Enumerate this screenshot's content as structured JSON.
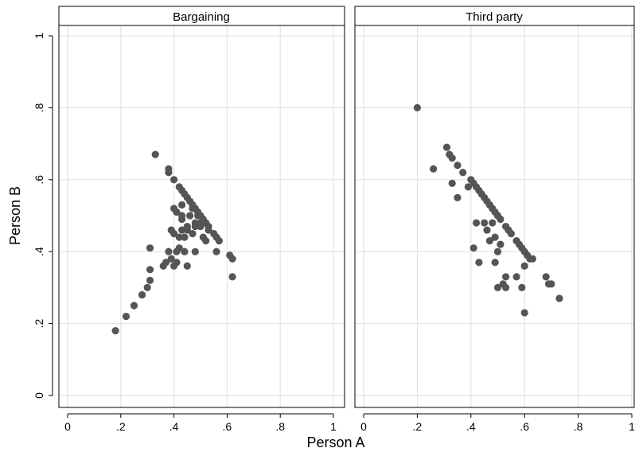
{
  "chart_data": {
    "type": "scatter",
    "xlabel": "Person A",
    "ylabel": "Person B",
    "xlim": [
      0,
      1
    ],
    "ylim": [
      0,
      1
    ],
    "x_ticks": [
      0,
      0.2,
      0.4,
      0.6,
      0.8,
      1
    ],
    "x_tick_labels": [
      "0",
      ".2",
      ".4",
      ".6",
      ".8",
      "1"
    ],
    "y_ticks": [
      0,
      0.2,
      0.4,
      0.6,
      0.8,
      1
    ],
    "y_tick_labels": [
      "0",
      ".2",
      ".4",
      ".6",
      ".8",
      "1"
    ],
    "grid": true,
    "marker_color": "#555555",
    "panels": [
      {
        "title": "Bargaining",
        "points": [
          [
            0.18,
            0.18
          ],
          [
            0.22,
            0.22
          ],
          [
            0.25,
            0.25
          ],
          [
            0.28,
            0.28
          ],
          [
            0.3,
            0.3
          ],
          [
            0.31,
            0.32
          ],
          [
            0.31,
            0.35
          ],
          [
            0.31,
            0.41
          ],
          [
            0.33,
            0.67
          ],
          [
            0.36,
            0.36
          ],
          [
            0.37,
            0.37
          ],
          [
            0.38,
            0.4
          ],
          [
            0.38,
            0.62
          ],
          [
            0.38,
            0.63
          ],
          [
            0.39,
            0.38
          ],
          [
            0.39,
            0.46
          ],
          [
            0.4,
            0.6
          ],
          [
            0.4,
            0.52
          ],
          [
            0.4,
            0.45
          ],
          [
            0.4,
            0.36
          ],
          [
            0.41,
            0.37
          ],
          [
            0.41,
            0.4
          ],
          [
            0.41,
            0.51
          ],
          [
            0.42,
            0.44
          ],
          [
            0.42,
            0.58
          ],
          [
            0.42,
            0.41
          ],
          [
            0.43,
            0.57
          ],
          [
            0.43,
            0.5
          ],
          [
            0.43,
            0.49
          ],
          [
            0.43,
            0.46
          ],
          [
            0.43,
            0.53
          ],
          [
            0.44,
            0.56
          ],
          [
            0.44,
            0.44
          ],
          [
            0.44,
            0.4
          ],
          [
            0.45,
            0.55
          ],
          [
            0.45,
            0.47
          ],
          [
            0.45,
            0.46
          ],
          [
            0.45,
            0.36
          ],
          [
            0.46,
            0.54
          ],
          [
            0.46,
            0.5
          ],
          [
            0.47,
            0.45
          ],
          [
            0.47,
            0.53
          ],
          [
            0.47,
            0.52
          ],
          [
            0.48,
            0.52
          ],
          [
            0.48,
            0.48
          ],
          [
            0.48,
            0.47
          ],
          [
            0.48,
            0.4
          ],
          [
            0.49,
            0.51
          ],
          [
            0.49,
            0.5
          ],
          [
            0.5,
            0.5
          ],
          [
            0.5,
            0.48
          ],
          [
            0.5,
            0.47
          ],
          [
            0.51,
            0.49
          ],
          [
            0.51,
            0.44
          ],
          [
            0.52,
            0.48
          ],
          [
            0.52,
            0.43
          ],
          [
            0.53,
            0.47
          ],
          [
            0.53,
            0.46
          ],
          [
            0.55,
            0.45
          ],
          [
            0.56,
            0.4
          ],
          [
            0.56,
            0.44
          ],
          [
            0.57,
            0.43
          ],
          [
            0.61,
            0.39
          ],
          [
            0.62,
            0.38
          ],
          [
            0.62,
            0.33
          ]
        ]
      },
      {
        "title": "Third party",
        "points": [
          [
            0.2,
            0.8
          ],
          [
            0.26,
            0.63
          ],
          [
            0.31,
            0.69
          ],
          [
            0.32,
            0.67
          ],
          [
            0.33,
            0.66
          ],
          [
            0.33,
            0.59
          ],
          [
            0.35,
            0.55
          ],
          [
            0.35,
            0.64
          ],
          [
            0.37,
            0.62
          ],
          [
            0.39,
            0.58
          ],
          [
            0.4,
            0.6
          ],
          [
            0.41,
            0.59
          ],
          [
            0.41,
            0.41
          ],
          [
            0.42,
            0.48
          ],
          [
            0.42,
            0.58
          ],
          [
            0.43,
            0.37
          ],
          [
            0.43,
            0.57
          ],
          [
            0.44,
            0.56
          ],
          [
            0.45,
            0.55
          ],
          [
            0.45,
            0.48
          ],
          [
            0.46,
            0.54
          ],
          [
            0.46,
            0.46
          ],
          [
            0.47,
            0.53
          ],
          [
            0.47,
            0.43
          ],
          [
            0.48,
            0.52
          ],
          [
            0.48,
            0.48
          ],
          [
            0.49,
            0.51
          ],
          [
            0.49,
            0.37
          ],
          [
            0.49,
            0.44
          ],
          [
            0.5,
            0.5
          ],
          [
            0.5,
            0.4
          ],
          [
            0.5,
            0.3
          ],
          [
            0.51,
            0.49
          ],
          [
            0.51,
            0.42
          ],
          [
            0.52,
            0.31
          ],
          [
            0.53,
            0.3
          ],
          [
            0.53,
            0.47
          ],
          [
            0.53,
            0.33
          ],
          [
            0.54,
            0.46
          ],
          [
            0.55,
            0.45
          ],
          [
            0.57,
            0.43
          ],
          [
            0.57,
            0.33
          ],
          [
            0.58,
            0.42
          ],
          [
            0.59,
            0.41
          ],
          [
            0.59,
            0.3
          ],
          [
            0.6,
            0.4
          ],
          [
            0.6,
            0.36
          ],
          [
            0.6,
            0.23
          ],
          [
            0.61,
            0.39
          ],
          [
            0.62,
            0.38
          ],
          [
            0.63,
            0.38
          ],
          [
            0.68,
            0.33
          ],
          [
            0.69,
            0.31
          ],
          [
            0.7,
            0.31
          ],
          [
            0.73,
            0.27
          ]
        ]
      }
    ]
  }
}
